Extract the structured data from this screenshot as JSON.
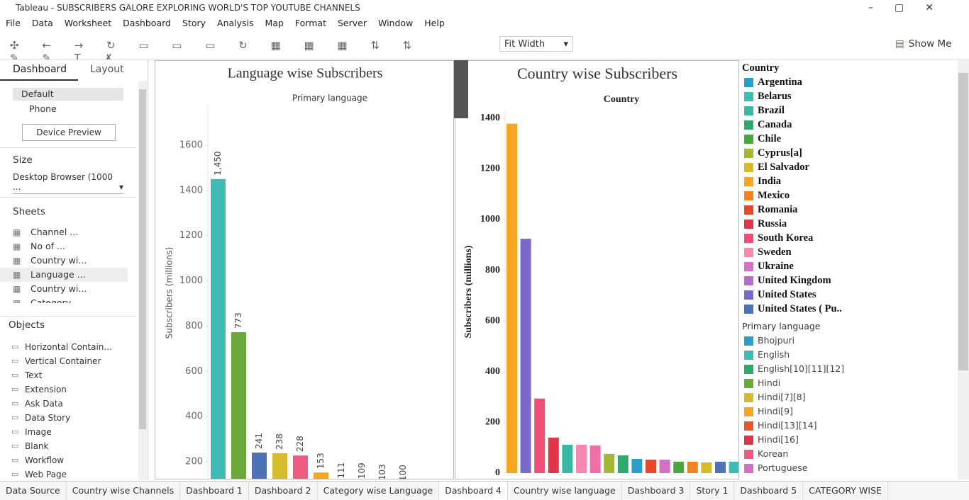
{
  "window": {
    "title": "Tableau - SUBSCRIBERS GALORE EXPLORING WORLD'S TOP YOUTUBE CHANNELS"
  },
  "menu": [
    "File",
    "Data",
    "Worksheet",
    "Dashboard",
    "Story",
    "Analysis",
    "Map",
    "Format",
    "Server",
    "Window",
    "Help"
  ],
  "toolbar": {
    "fit": "Fit Width",
    "show_me": "Show Me"
  },
  "side_panel": {
    "tabs": [
      "Dashboard",
      "Layout"
    ],
    "devices": [
      "Default",
      "Phone"
    ],
    "device_preview": "Device Preview",
    "size_heading": "Size",
    "size_value": "Desktop Browser (1000 ...",
    "sheets_heading": "Sheets",
    "sheets": [
      "Channel ...",
      "No of ...",
      "Country wi...",
      "Language ...",
      "Country wi...",
      "Category ..."
    ],
    "objects_heading": "Objects",
    "objects": [
      "Horizontal Contain...",
      "Vertical Container",
      "Text",
      "Extension",
      "Ask Data",
      "Data Story",
      "Image",
      "Blank",
      "Workflow",
      "Web Page"
    ]
  },
  "chart_data": [
    {
      "type": "bar",
      "title": "Language wise Subscribers",
      "subtitle": "Primary language",
      "y_label": "Subscribers (millions)",
      "categories": [
        null,
        null,
        null,
        null,
        null,
        null,
        null,
        null,
        null,
        null
      ],
      "values": [
        1450,
        773,
        241,
        238,
        228,
        153,
        111,
        109,
        103,
        100
      ],
      "value_labels": [
        "1,450",
        "773",
        "241",
        "238",
        "228",
        "153",
        "111",
        "109",
        "103",
        "100"
      ],
      "colors": [
        "#3cbcb3",
        "#6aa83a",
        "#4e72b8",
        "#d6bb2c",
        "#ee5a80",
        "#f5a623",
        "#e5592a",
        "#a0b832",
        "#d66fc6",
        "#2daa6e"
      ],
      "ylim": [
        119,
        1775
      ],
      "yticks": [
        200,
        400,
        600,
        800,
        1000,
        1200,
        1400,
        1600
      ]
    },
    {
      "type": "bar",
      "title": "Country wise Subscribers",
      "subtitle": "Country",
      "y_label": "Subscribers (millions)",
      "categories": [
        null,
        null,
        null,
        null,
        null,
        null,
        null,
        null,
        null,
        null,
        null,
        null,
        null,
        null,
        null,
        null,
        null
      ],
      "values": [
        1378,
        924,
        294,
        140,
        112,
        112,
        109,
        76,
        70,
        56,
        53,
        53,
        45,
        45,
        42,
        45,
        45
      ],
      "colors": [
        "#f5a623",
        "#7b68c8",
        "#ee4f77",
        "#e0364a",
        "#3bb7a3",
        "#f789b0",
        "#ee6fa8",
        "#a0b832",
        "#2daa6e",
        "#2a9fc9",
        "#e5492a",
        "#d66fc6",
        "#4ca640",
        "#f38320",
        "#d6bb2c",
        "#4e72b8",
        "#3cbcb3"
      ],
      "ylim": [
        0,
        1430
      ],
      "yticks": [
        0,
        200,
        400,
        600,
        800,
        1000,
        1200,
        1400
      ]
    }
  ],
  "legends": [
    {
      "title": "Country",
      "items": [
        {
          "label": "Argentina",
          "color": "#2a9fc9"
        },
        {
          "label": "Belarus",
          "color": "#3cbcb3"
        },
        {
          "label": "Brazil",
          "color": "#3bb7a3"
        },
        {
          "label": "Canada",
          "color": "#2daa6e"
        },
        {
          "label": "Chile",
          "color": "#4ca640"
        },
        {
          "label": "Cyprus[a]",
          "color": "#a0b832"
        },
        {
          "label": "El Salvador",
          "color": "#d6bb2c"
        },
        {
          "label": "India",
          "color": "#f5a623"
        },
        {
          "label": "Mexico",
          "color": "#f38320"
        },
        {
          "label": "Romania",
          "color": "#e5492a"
        },
        {
          "label": "Russia",
          "color": "#e0364a"
        },
        {
          "label": "South Korea",
          "color": "#ee4f77"
        },
        {
          "label": "Sweden",
          "color": "#f789b0"
        },
        {
          "label": "Ukraine",
          "color": "#d66fc6"
        },
        {
          "label": "United Kingdom",
          "color": "#b36fc6"
        },
        {
          "label": "United States",
          "color": "#7b68c8"
        },
        {
          "label": "United States ( Pu..",
          "color": "#4e72b8"
        }
      ]
    },
    {
      "title": "Primary language",
      "items": [
        {
          "label": "Bhojpuri",
          "color": "#2a9fc9"
        },
        {
          "label": "English",
          "color": "#3cbcb3"
        },
        {
          "label": "English[10][11][12]",
          "color": "#2daa6e"
        },
        {
          "label": "Hindi",
          "color": "#6aa83a"
        },
        {
          "label": "Hindi[7][8]",
          "color": "#d6bb2c"
        },
        {
          "label": "Hindi[9]",
          "color": "#f5a623"
        },
        {
          "label": "Hindi[13][14]",
          "color": "#e5592a"
        },
        {
          "label": "Hindi[16]",
          "color": "#e0364a"
        },
        {
          "label": "Korean",
          "color": "#ee5a80"
        },
        {
          "label": "Portuguese",
          "color": "#d66fc6"
        }
      ]
    }
  ],
  "tabs": [
    "Data Source",
    "Country wise Channels",
    "Dashboard 1",
    "Dashboard 2",
    "Category wise Language",
    "Dashboard 4",
    "Country wise language",
    "Dashboard 3",
    "Story 1",
    "Dashboard 5",
    "CATEGORY WISE"
  ]
}
